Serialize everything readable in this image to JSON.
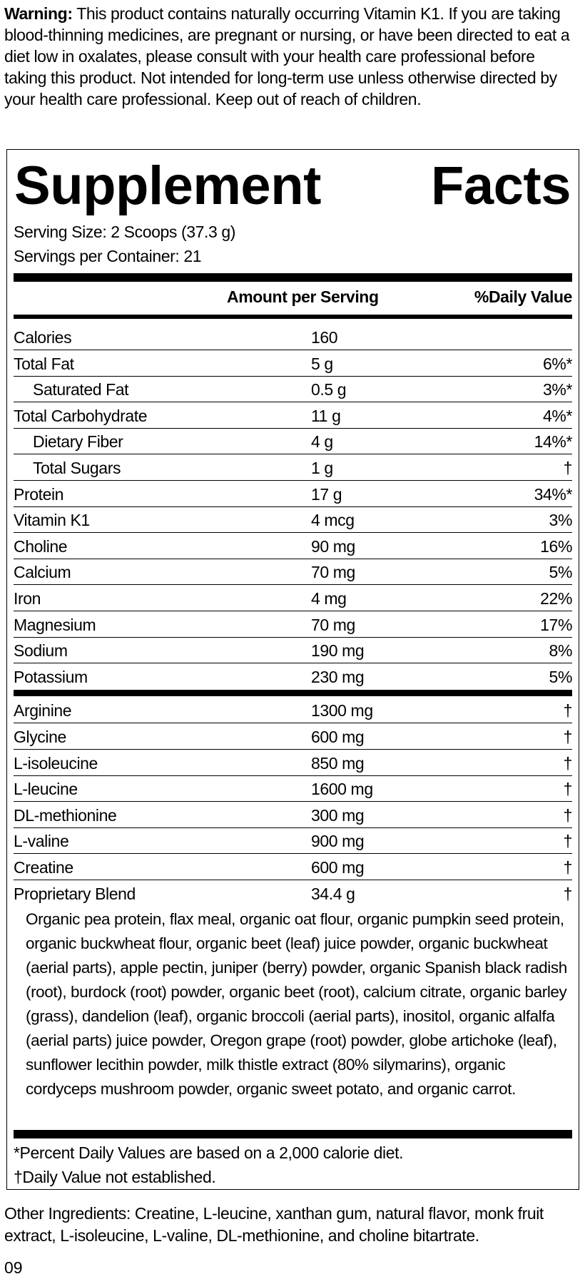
{
  "warning": {
    "label": "Warning:",
    "text": "This product contains naturally occurring Vitamin K1. If you are taking blood-thinning medicines, are pregnant or nursing, or have been directed to eat a diet low in oxalates, please consult with your health care professional before taking this product. Not intended for long-term use unless otherwise directed by your health care professional. Keep out of reach of children."
  },
  "facts": {
    "title": "Supplement Facts",
    "serving_size": "Serving Size: 2 Scoops (37.3 g)",
    "servings_per_container": "Servings per Container: 21",
    "header": {
      "amount": "Amount per Serving",
      "daily_value": "%Daily Value"
    },
    "nutrients": [
      [
        "Calories",
        "160",
        ""
      ],
      [
        "Total Fat",
        "5 g",
        "6%*"
      ],
      [
        "Saturated Fat",
        "0.5 g",
        "3%*"
      ],
      [
        "Total Carbohydrate",
        "11 g",
        "4%*"
      ],
      [
        "Dietary Fiber",
        "4 g",
        "14%*"
      ],
      [
        "Total Sugars",
        "1 g",
        "†"
      ],
      [
        "Protein",
        "17 g",
        "34%*"
      ],
      [
        "Vitamin K1",
        "4 mcg",
        "3%"
      ],
      [
        "Choline",
        "90 mg",
        "16%"
      ],
      [
        "Calcium",
        "70 mg",
        "5%"
      ],
      [
        "Iron",
        "4 mg",
        "22%"
      ],
      [
        "Magnesium",
        "70 mg",
        "17%"
      ],
      [
        "Sodium",
        "190 mg",
        "8%"
      ],
      [
        "Potassium",
        "230 mg",
        "5%"
      ]
    ],
    "other": [
      [
        "Arginine",
        "1300 mg",
        "†"
      ],
      [
        "Glycine",
        "600 mg",
        "†"
      ],
      [
        "L-isoleucine",
        "850 mg",
        "†"
      ],
      [
        "L-leucine",
        "1600 mg",
        "†"
      ],
      [
        "DL-methionine",
        "300 mg",
        "†"
      ],
      [
        "L-valine",
        "900 mg",
        "†"
      ],
      [
        "Creatine",
        "600 mg",
        "†"
      ],
      [
        "Proprietary Blend",
        "34.4 g",
        "†"
      ]
    ],
    "blend_description": "Organic pea protein, flax meal, organic oat flour, organic pumpkin seed protein, organic buckwheat flour, organic beet (leaf) juice powder, organic buckwheat (aerial parts), apple pectin, juniper (berry) powder, organic Spanish black radish (root), burdock (root) powder, organic beet (root), calcium citrate, organic barley (grass), dandelion (leaf), organic broccoli (aerial parts), inositol, organic alfalfa (aerial parts) juice powder, Oregon grape (root) powder, globe artichoke (leaf), sunflower lecithin powder, milk thistle extract (80% silymarins), organic cordyceps mushroom powder, organic sweet potato, and organic carrot.",
    "footnotes": [
      "*Percent Daily Values are based on a 2,000 calorie diet.",
      "†Daily Value not established."
    ]
  },
  "other_ingredients": "Other Ingredients: Creatine, L-leucine, xanthan gum, natural flavor, monk fruit extract, L-isoleucine, L-valine, DL-methionine, and choline bitartrate.",
  "code": "09"
}
